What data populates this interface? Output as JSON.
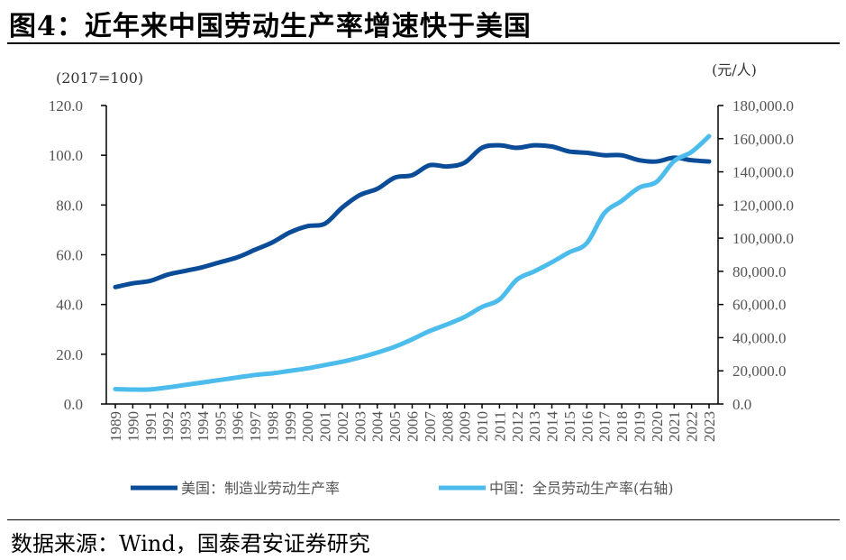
{
  "title": "图4：近年来中国劳动生产率增速快于美国",
  "source": "数据来源：Wind，国泰君安证券研究",
  "chart_data": {
    "type": "line",
    "title": "图4：近年来中国劳动生产率增速快于美国",
    "y_left_unit": "(2017=100)",
    "y_right_unit": "(元/人)",
    "y_left_lim": [
      0,
      120
    ],
    "y_right_lim": [
      0,
      180000
    ],
    "y_left_ticks": [
      "0.0",
      "20.0",
      "40.0",
      "60.0",
      "80.0",
      "100.0",
      "120.0"
    ],
    "y_right_ticks": [
      "0.0",
      "20,000.0",
      "40,000.0",
      "60,000.0",
      "80,000.0",
      "100,000.0",
      "120,000.0",
      "140,000.0",
      "160,000.0",
      "180,000.0"
    ],
    "x": [
      1989,
      1990,
      1991,
      1992,
      1993,
      1994,
      1995,
      1996,
      1997,
      1998,
      1999,
      2000,
      2001,
      2002,
      2003,
      2004,
      2005,
      2006,
      2007,
      2008,
      2009,
      2010,
      2011,
      2012,
      2013,
      2014,
      2015,
      2016,
      2017,
      2018,
      2019,
      2020,
      2021,
      2022,
      2023
    ],
    "grid": false,
    "legend_placement": "bottom",
    "series": [
      {
        "name": "美国：制造业劳动生产率",
        "axis": "left",
        "color": "#0a4c97",
        "values": [
          47,
          48.5,
          49.5,
          52,
          53.5,
          55,
          57,
          59,
          62,
          65,
          69,
          71.5,
          72.5,
          79,
          84,
          86.5,
          91,
          92,
          96,
          95.5,
          97,
          103,
          104,
          103,
          104,
          103.5,
          101.5,
          101,
          100,
          100,
          98,
          97.5,
          99,
          98,
          97.5
        ]
      },
      {
        "name": "中国：全员劳动生产率(右轴)",
        "axis": "right",
        "color": "#4bbcec",
        "values": [
          9000,
          8700,
          8800,
          10000,
          11500,
          13000,
          14500,
          16000,
          17500,
          18500,
          20000,
          21500,
          23500,
          25500,
          28000,
          31000,
          34500,
          39000,
          44000,
          48000,
          52500,
          58500,
          63000,
          75000,
          80000,
          85500,
          91500,
          97000,
          115000,
          122500,
          130500,
          134000,
          146500,
          152000,
          161500
        ]
      }
    ]
  }
}
